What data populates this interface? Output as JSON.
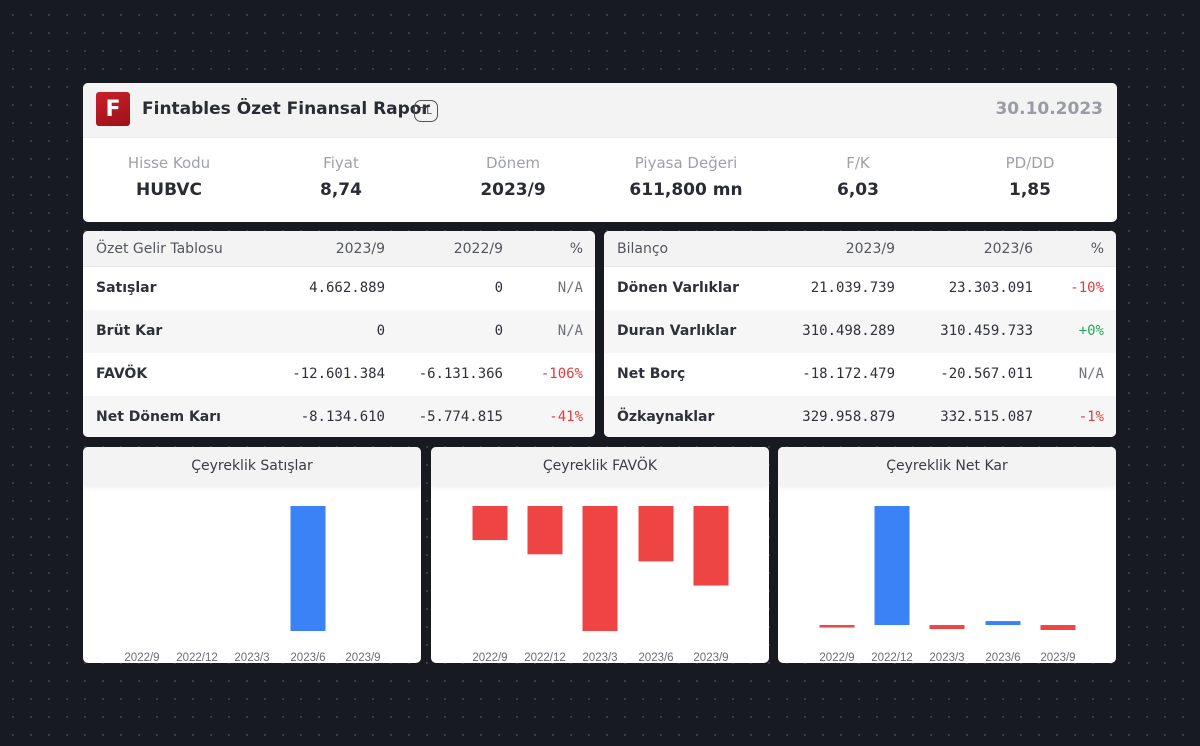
{
  "header": {
    "logo_letter": "F",
    "title": "Fintables Özet Finansal Rapor",
    "currency": "TL",
    "date": "30.10.2023"
  },
  "metrics": [
    {
      "label": "Hisse Kodu",
      "value": "HUBVC"
    },
    {
      "label": "Fiyat",
      "value": "8,74"
    },
    {
      "label": "Dönem",
      "value": "2023/9"
    },
    {
      "label": "Piyasa Değeri",
      "value": "611,800 mn"
    },
    {
      "label": "F/K",
      "value": "6,03"
    },
    {
      "label": "PD/DD",
      "value": "1,85"
    }
  ],
  "income": {
    "headers": [
      "Özet Gelir Tablosu",
      "2023/9",
      "2022/9",
      "%"
    ],
    "rows": [
      {
        "name": "Satışlar",
        "v1": "4.662.889",
        "v2": "0",
        "pct": "N/A"
      },
      {
        "name": "Brüt Kar",
        "v1": "0",
        "v2": "0",
        "pct": "N/A"
      },
      {
        "name": "FAVÖK",
        "v1": "-12.601.384",
        "v2": "-6.131.366",
        "pct": "-106%"
      },
      {
        "name": "Net Dönem Karı",
        "v1": "-8.134.610",
        "v2": "-5.774.815",
        "pct": "-41%"
      }
    ]
  },
  "balance": {
    "headers": [
      "Bilanço",
      "2023/9",
      "2023/6",
      "%"
    ],
    "rows": [
      {
        "name": "Dönen Varlıklar",
        "v1": "21.039.739",
        "v2": "23.303.091",
        "pct": "-10%"
      },
      {
        "name": "Duran Varlıklar",
        "v1": "310.498.289",
        "v2": "310.459.733",
        "pct": "+0%"
      },
      {
        "name": "Net Borç",
        "v1": "-18.172.479",
        "v2": "-20.567.011",
        "pct": "N/A"
      },
      {
        "name": "Özkaynaklar",
        "v1": "329.958.879",
        "v2": "332.515.087",
        "pct": "-1%"
      }
    ]
  },
  "colors": {
    "positive_bar": "#3b82f6",
    "negative_bar": "#ef4444",
    "negative_text": "#e03c3c",
    "positive_text": "#22aa5a"
  },
  "chart_data": [
    {
      "type": "bar",
      "title": "Çeyreklik Satışlar",
      "categories": [
        "2022/9",
        "2022/12",
        "2023/3",
        "2023/6",
        "2023/9"
      ],
      "values": [
        0,
        0,
        0,
        4.66,
        0
      ],
      "ylim": [
        0,
        4.66
      ]
    },
    {
      "type": "bar",
      "title": "Çeyreklik FAVÖK",
      "categories": [
        "2022/9",
        "2022/12",
        "2023/3",
        "2023/6",
        "2023/9"
      ],
      "values": [
        -1.2,
        -1.7,
        -4.4,
        -1.95,
        -2.8
      ],
      "ylim": [
        -4.4,
        0
      ]
    },
    {
      "type": "bar",
      "title": "Çeyreklik Net Kar",
      "categories": [
        "2022/9",
        "2022/12",
        "2023/3",
        "2023/6",
        "2023/9"
      ],
      "values": [
        -0.05,
        6.0,
        -0.2,
        0.2,
        -0.25
      ],
      "ylim": [
        -0.3,
        6.0
      ]
    }
  ]
}
